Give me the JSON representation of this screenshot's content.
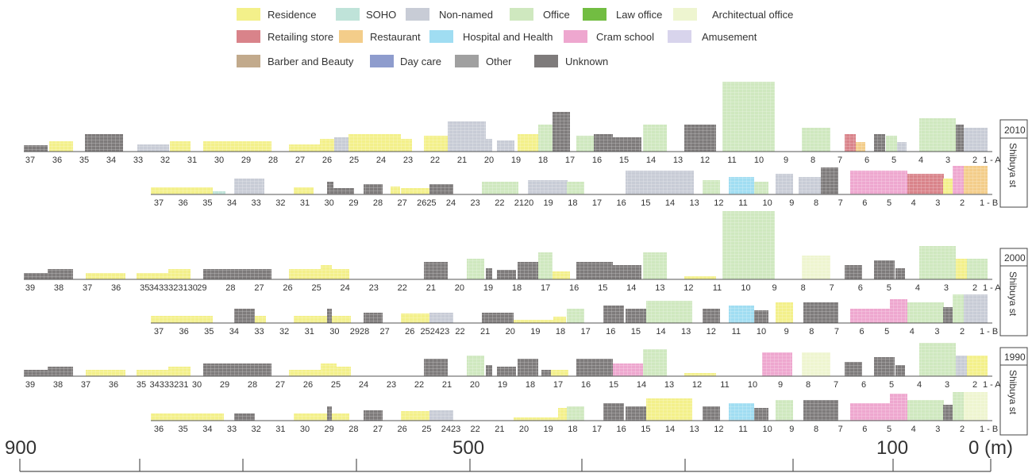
{
  "legend": [
    {
      "label": "Residence",
      "color": "#f3f08a"
    },
    {
      "label": "SOHO",
      "color": "#bfe3d9"
    },
    {
      "label": "Non-named",
      "color": "#c8ccd6"
    },
    {
      "label": "Office",
      "color": "#cfe8bf"
    },
    {
      "label": "Law office",
      "color": "#72bd42"
    },
    {
      "label": "Architectual office",
      "color": "#eef5d0"
    },
    {
      "label": "Retailing store",
      "color": "#d9838a"
    },
    {
      "label": "Restaurant",
      "color": "#f3cd8a"
    },
    {
      "label": "Hospital and Health",
      "color": "#a0ddf2"
    },
    {
      "label": "Cram school",
      "color": "#eea7cf"
    },
    {
      "label": "Amusement",
      "color": "#d8d4ec"
    },
    {
      "label": "Barber and Beauty",
      "color": "#c2aa8c"
    },
    {
      "label": "Day care",
      "color": "#8e9ccd"
    },
    {
      "label": "Other",
      "color": "#a0a0a0"
    },
    {
      "label": "Unknown",
      "color": "#7e7b7b"
    }
  ],
  "years": [
    "2010",
    "2000",
    "1990"
  ],
  "street_label": "Shibuya st",
  "rows": [
    {
      "side": "1 - A",
      "numbers": [
        "37",
        "36",
        "35",
        "34",
        "33",
        "32",
        "31",
        "30",
        "29",
        "28",
        "27",
        "26",
        "25",
        "24",
        "23",
        "22",
        "21",
        "20",
        "19",
        "18",
        "17",
        "16",
        "15",
        "14",
        "13",
        "12",
        "11",
        "10",
        "9",
        "8",
        "7",
        "6",
        "5",
        "4",
        "3",
        "2"
      ]
    },
    {
      "side": "1 - B",
      "numbers": [
        "37",
        "36",
        "35",
        "34",
        "33",
        "32",
        "31",
        "30",
        "29",
        "28",
        "27",
        "2625",
        "24",
        "23",
        "22",
        "2120",
        "19",
        "18",
        "17",
        "16",
        "15",
        "14",
        "13",
        "12",
        "11",
        "10",
        "9",
        "8",
        "7",
        "6",
        "5",
        "4",
        "3",
        "2"
      ]
    },
    {
      "side": "1 - A",
      "numbers": [
        "39",
        "38",
        "37",
        "36",
        "35",
        "3433323130",
        "29",
        "28",
        "27",
        "26",
        "25",
        "24",
        "23",
        "22",
        "21",
        "20",
        "19",
        "18",
        "17",
        "16",
        "15",
        "14",
        "13",
        "12",
        "11",
        "10",
        "9",
        "8",
        "7",
        "6",
        "5",
        "4",
        "3",
        "2"
      ]
    },
    {
      "side": "1 - B",
      "numbers": [
        "37",
        "36",
        "35",
        "34",
        "33",
        "32",
        "31",
        "30",
        "2928",
        "27",
        "26",
        "252423",
        "22",
        "21",
        "20",
        "19",
        "18",
        "17",
        "16",
        "15",
        "14",
        "13",
        "12",
        "11",
        "10",
        "9",
        "8",
        "7",
        "6",
        "5",
        "4",
        "3",
        "2"
      ]
    },
    {
      "side": "1 - A",
      "numbers": [
        "39",
        "38",
        "37",
        "36",
        "35",
        "34333231",
        "30",
        "29",
        "28",
        "27",
        "26",
        "25",
        "24",
        "23",
        "22",
        "21",
        "20",
        "19",
        "18",
        "17",
        "16",
        "15",
        "14",
        "13",
        "12",
        "11",
        "10",
        "9",
        "8",
        "7",
        "6",
        "5",
        "4",
        "3",
        "2"
      ]
    },
    {
      "side": "1 - B",
      "numbers": [
        "36",
        "35",
        "34",
        "33",
        "32",
        "31",
        "30",
        "29",
        "28",
        "27",
        "26",
        "25",
        "2423",
        "22",
        "21",
        "20",
        "19",
        "18",
        "17",
        "16",
        "15",
        "14",
        "13",
        "12",
        "11",
        "10",
        "9",
        "8",
        "7",
        "6",
        "5",
        "4",
        "3",
        "2"
      ]
    }
  ],
  "scale": {
    "labels": [
      "900",
      "500",
      "100",
      "0 (m)"
    ]
  }
}
